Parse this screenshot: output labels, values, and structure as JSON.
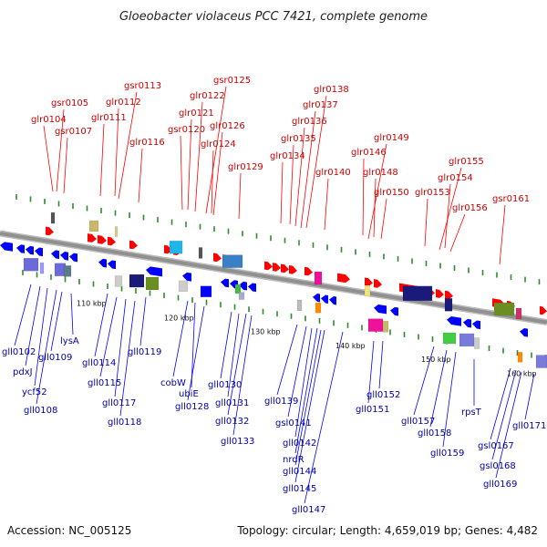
{
  "header": {
    "title": "Gloeobacter violaceus PCC 7421, complete genome"
  },
  "footer": {
    "accession": "Accession: NC_005125",
    "summary": "Topology: circular; Length: 4,659,019 bp; Genes: 4,482"
  },
  "colors": {
    "forward_strand": "#ff0000",
    "reverse_strand": "#0000ff",
    "top_label": "#cc0000",
    "bottom_label": "#0000aa",
    "track": "#909090"
  },
  "kbp_ticks": [
    "110 kbp",
    "120 kbp",
    "130 kbp",
    "140 kbp",
    "150 kbp",
    "160 kbp"
  ],
  "top_labels": [
    "gsr0105",
    "glr0104",
    "gsr0107",
    "glr0111",
    "glr0112",
    "gsr0113",
    "glr0116",
    "gsr0120",
    "glr0121",
    "glr0122",
    "gsr0125",
    "glr0124",
    "glr0126",
    "glr0129",
    "glr0134",
    "glr0135",
    "glr0136",
    "glr0137",
    "glr0138",
    "glr0140",
    "glr0146",
    "glr0148",
    "glr0149",
    "glr0150",
    "glr0153",
    "glr0154",
    "glr0155",
    "glr0156",
    "gsr0161"
  ],
  "bottom_labels": [
    "gll0102",
    "pdxJ",
    "ycf52",
    "gll0108",
    "gll0109",
    "lysA",
    "gll0114",
    "gll0115",
    "gll0117",
    "gll0118",
    "gll0119",
    "cobW",
    "ubiE",
    "gll0128",
    "gll0130",
    "gll0131",
    "gll0132",
    "gll0133",
    "gll0139",
    "gsl0141",
    "gll0142",
    "nrdR",
    "gll0144",
    "gll0145",
    "gll0147",
    "gll0151",
    "gll0152",
    "gll0157",
    "gll0158",
    "gll0159",
    "rpsT",
    "gsl0167",
    "gsl0168",
    "gll0169",
    "gll0171"
  ]
}
